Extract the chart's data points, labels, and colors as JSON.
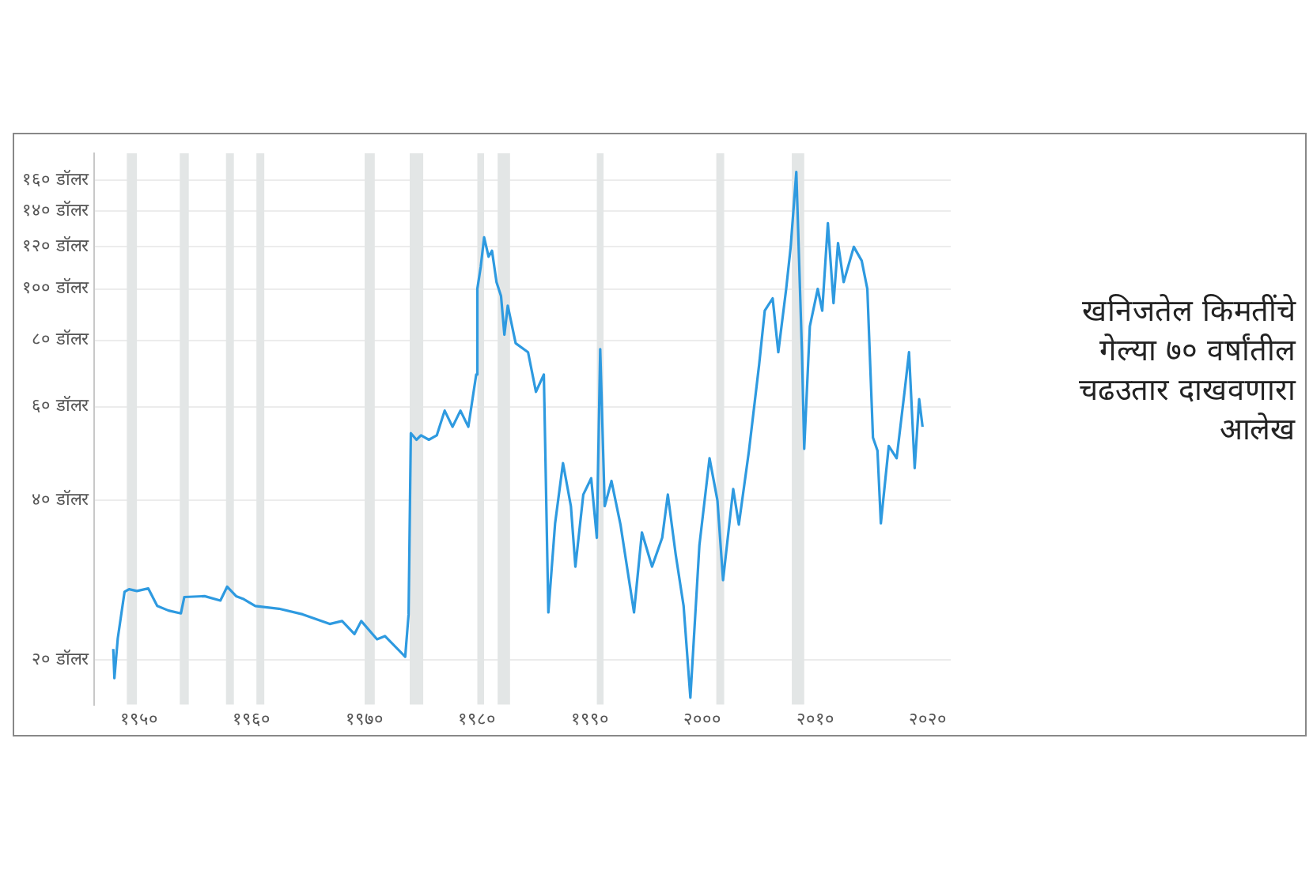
{
  "chart_data": {
    "type": "line",
    "title": "खनिजतेल किमतींचे गेल्या ७० वर्षांतील चढउतार दाखवणारा आलेख",
    "x": [
      1947.7,
      1947.8,
      1948.1,
      1948.7,
      1949.1,
      1949.8,
      1950.8,
      1951.6,
      1952.6,
      1953.7,
      1954.0,
      1955.8,
      1957.2,
      1957.8,
      1958.6,
      1959.2,
      1960.3,
      1962.4,
      1964.5,
      1966.9,
      1968.0,
      1969.1,
      1969.7,
      1971.1,
      1971.8,
      1973.6,
      1973.9,
      1974.1,
      1974.6,
      1975.0,
      1975.7,
      1976.4,
      1977.1,
      1977.8,
      1978.5,
      1979.2,
      1979.9,
      1980.0,
      1980.3,
      1980.6,
      1981.0,
      1981.3,
      1981.7,
      1982.1,
      1982.4,
      1982.7,
      1983.4,
      1984.5,
      1985.2,
      1985.9,
      1986.3,
      1986.9,
      1987.6,
      1988.3,
      1988.7,
      1989.4,
      1990.1,
      1990.6,
      1990.9,
      1991.3,
      1991.9,
      1992.7,
      1993.9,
      1994.6,
      1995.5,
      1996.4,
      1996.9,
      1997.6,
      1998.3,
      1998.9,
      1999.7,
      2000.6,
      2001.3,
      2001.8,
      2002.7,
      2003.2,
      2004.1,
      2005.0,
      2005.5,
      2006.2,
      2006.7,
      2007.4,
      2007.8,
      2008.3,
      2008.8,
      2009.0,
      2009.5,
      2010.2,
      2010.6,
      2011.1,
      2011.6,
      2012.0,
      2012.5,
      2013.4,
      2014.1,
      2014.6,
      2015.1,
      2015.5,
      2015.8,
      2016.5,
      2017.2,
      2017.9,
      2018.3,
      2018.8,
      2019.2,
      2019.5
    ],
    "series": [
      {
        "color": "#2e9ae0",
        "values": [
          21,
          18.5,
          22,
          26.9,
          27.2,
          27,
          27.3,
          25.3,
          24.8,
          24.5,
          26.3,
          26.4,
          25.9,
          27.5,
          26.4,
          26.1,
          25.3,
          25,
          24.4,
          23.4,
          23.7,
          22.4,
          23.7,
          21.9,
          22.2,
          20.3,
          24.4,
          53.5,
          52,
          53,
          52,
          53,
          59,
          55,
          59,
          55,
          69,
          100,
          110,
          125,
          115,
          118,
          103,
          97,
          82,
          93,
          79,
          76,
          64,
          69,
          24.6,
          36.2,
          47,
          39,
          30,
          41,
          44,
          34,
          77,
          39,
          43.5,
          36,
          24.6,
          34.8,
          30,
          34,
          41,
          31.6,
          25.3,
          17,
          32.9,
          48,
          40,
          28.3,
          42,
          36,
          49.6,
          72,
          91,
          96,
          76,
          100,
          120,
          166,
          76,
          50,
          85,
          100,
          91,
          133,
          94,
          122,
          103,
          120,
          113,
          100,
          52.5,
          49.6,
          36.2,
          50.6,
          48,
          64,
          76,
          46,
          62,
          55
        ]
      }
    ],
    "xlim": [
      1946,
      2022
    ],
    "xticks": [
      {
        "value": 1950,
        "label": "१९५०"
      },
      {
        "value": 1960,
        "label": "१९६०"
      },
      {
        "value": 1970,
        "label": "१९७०"
      },
      {
        "value": 1980,
        "label": "१९८०"
      },
      {
        "value": 1990,
        "label": "१९९०"
      },
      {
        "value": 2000,
        "label": "२०००"
      },
      {
        "value": 2010,
        "label": "२०१०"
      },
      {
        "value": 2020,
        "label": "२०२०"
      }
    ],
    "log": "y",
    "ylim": [
      16.5,
      180
    ],
    "yticks": [
      {
        "value": 20,
        "label": "२० डॉलर"
      },
      {
        "value": 40,
        "label": "४० डॉलर"
      },
      {
        "value": 60,
        "label": "६० डॉलर"
      },
      {
        "value": 80,
        "label": "८० डॉलर"
      },
      {
        "value": 100,
        "label": "१०० डॉलर"
      },
      {
        "value": 120,
        "label": "१२० डॉलर"
      },
      {
        "value": 140,
        "label": "१४० डॉलर"
      },
      {
        "value": 160,
        "label": "१६० डॉलर"
      }
    ],
    "grid": "y",
    "legend": false,
    "bands": [
      {
        "axis": "x",
        "from": 1948.9,
        "to": 1949.8,
        "color": "#e3e6e6"
      },
      {
        "axis": "x",
        "from": 1953.6,
        "to": 1954.4,
        "color": "#e3e6e6"
      },
      {
        "axis": "x",
        "from": 1957.7,
        "to": 1958.4,
        "color": "#e3e6e6"
      },
      {
        "axis": "x",
        "from": 1960.4,
        "to": 1961.1,
        "color": "#e3e6e6"
      },
      {
        "axis": "x",
        "from": 1970.0,
        "to": 1970.9,
        "color": "#e3e6e6"
      },
      {
        "axis": "x",
        "from": 1974.0,
        "to": 1975.2,
        "color": "#e3e6e6"
      },
      {
        "axis": "x",
        "from": 1980.0,
        "to": 1980.6,
        "color": "#e3e6e6"
      },
      {
        "axis": "x",
        "from": 1981.8,
        "to": 1982.9,
        "color": "#e3e6e6"
      },
      {
        "axis": "x",
        "from": 1990.6,
        "to": 1991.2,
        "color": "#e3e6e6"
      },
      {
        "axis": "x",
        "from": 2001.2,
        "to": 2001.9,
        "color": "#e3e6e6"
      },
      {
        "axis": "x",
        "from": 2007.9,
        "to": 2009.0,
        "color": "#e3e6e6"
      }
    ]
  }
}
